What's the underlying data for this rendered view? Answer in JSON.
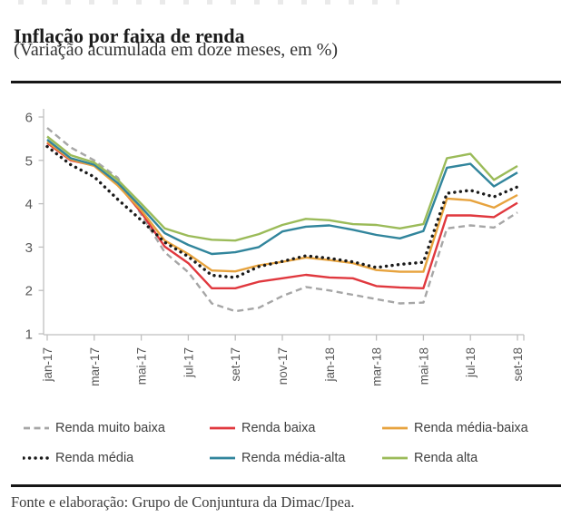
{
  "header": {
    "title": "Inflação por faixa de renda",
    "subtitle": "(Variação acumulada em doze meses, em %)"
  },
  "footer": {
    "source": "Fonte e elaboração: Grupo de Conjuntura da Dimac/Ipea."
  },
  "chart_data": {
    "type": "line",
    "title": "Inflação por faixa de renda",
    "subtitle": "(Variação acumulada em doze meses, em %)",
    "ylabel": "",
    "xlabel": "",
    "ylim": [
      1,
      6
    ],
    "yticks": [
      1,
      2,
      3,
      4,
      5,
      6
    ],
    "grid": false,
    "legend_position": "bottom",
    "x": [
      "jan-17",
      "fev-17",
      "mar-17",
      "abr-17",
      "mai-17",
      "jun-17",
      "jul-17",
      "ago-17",
      "set-17",
      "out-17",
      "nov-17",
      "dez-17",
      "jan-18",
      "fev-18",
      "mar-18",
      "abr-18",
      "mai-18",
      "jun-18",
      "jul-18",
      "ago-18",
      "set-18"
    ],
    "xtick_every": 2,
    "visible_xtick_labels": [
      "jan-17",
      "mar-17",
      "mai-17",
      "jul-17",
      "set-17",
      "nov-17",
      "jan-18",
      "mar-18",
      "mai-18",
      "jul-18",
      "set-18"
    ],
    "axis_color": "#bfbfbf",
    "tick_label_color": "#595959",
    "series": [
      {
        "name": "Renda muito baixa",
        "color": "#a6a6a6",
        "line_style": "dashed",
        "values": [
          5.75,
          5.3,
          5.0,
          4.6,
          3.75,
          2.88,
          2.42,
          1.7,
          1.52,
          1.6,
          1.87,
          2.08,
          2.0,
          1.9,
          1.8,
          1.7,
          1.72,
          3.43,
          3.5,
          3.45,
          3.8
        ]
      },
      {
        "name": "Renda baixa",
        "color": "#e0383e",
        "line_style": "solid",
        "values": [
          5.4,
          5.0,
          4.88,
          4.45,
          3.8,
          3.01,
          2.63,
          2.05,
          2.05,
          2.2,
          2.28,
          2.36,
          2.3,
          2.28,
          2.1,
          2.07,
          2.05,
          3.73,
          3.73,
          3.69,
          4.02
        ]
      },
      {
        "name": "Renda média-baixa",
        "color": "#e7a33e",
        "line_style": "solid",
        "values": [
          5.43,
          5.02,
          4.87,
          4.42,
          3.85,
          3.15,
          2.84,
          2.46,
          2.44,
          2.58,
          2.66,
          2.76,
          2.7,
          2.63,
          2.47,
          2.43,
          2.43,
          4.12,
          4.08,
          3.91,
          4.2
        ]
      },
      {
        "name": "Renda média-alta",
        "color": "#31859c",
        "line_style": "solid",
        "values": [
          5.48,
          5.05,
          4.9,
          4.48,
          3.92,
          3.32,
          3.05,
          2.84,
          2.88,
          3.0,
          3.36,
          3.47,
          3.5,
          3.4,
          3.28,
          3.2,
          3.37,
          4.83,
          4.92,
          4.4,
          4.72
        ]
      },
      {
        "name": "Renda alta",
        "color": "#9bbb59",
        "line_style": "solid",
        "values": [
          5.55,
          5.12,
          4.95,
          4.55,
          4.0,
          3.43,
          3.26,
          3.17,
          3.15,
          3.3,
          3.51,
          3.65,
          3.62,
          3.53,
          3.51,
          3.43,
          3.53,
          5.05,
          5.15,
          4.55,
          4.87
        ]
      },
      {
        "name": "Renda média",
        "color": "#1a1a1a",
        "line_style": "dotted",
        "values": [
          5.32,
          4.9,
          4.62,
          4.1,
          3.62,
          3.11,
          2.78,
          2.35,
          2.3,
          2.55,
          2.67,
          2.8,
          2.74,
          2.66,
          2.53,
          2.6,
          2.65,
          4.24,
          4.31,
          4.16,
          4.39
        ]
      }
    ]
  },
  "legend": {
    "items": [
      {
        "label": "Renda muito baixa",
        "series_index": 0
      },
      {
        "label": "Renda baixa",
        "series_index": 1
      },
      {
        "label": "Renda média-baixa",
        "series_index": 2
      },
      {
        "label": "Renda média",
        "series_index": 5
      },
      {
        "label": "Renda média-alta",
        "series_index": 3
      },
      {
        "label": "Renda alta",
        "series_index": 4
      }
    ]
  }
}
